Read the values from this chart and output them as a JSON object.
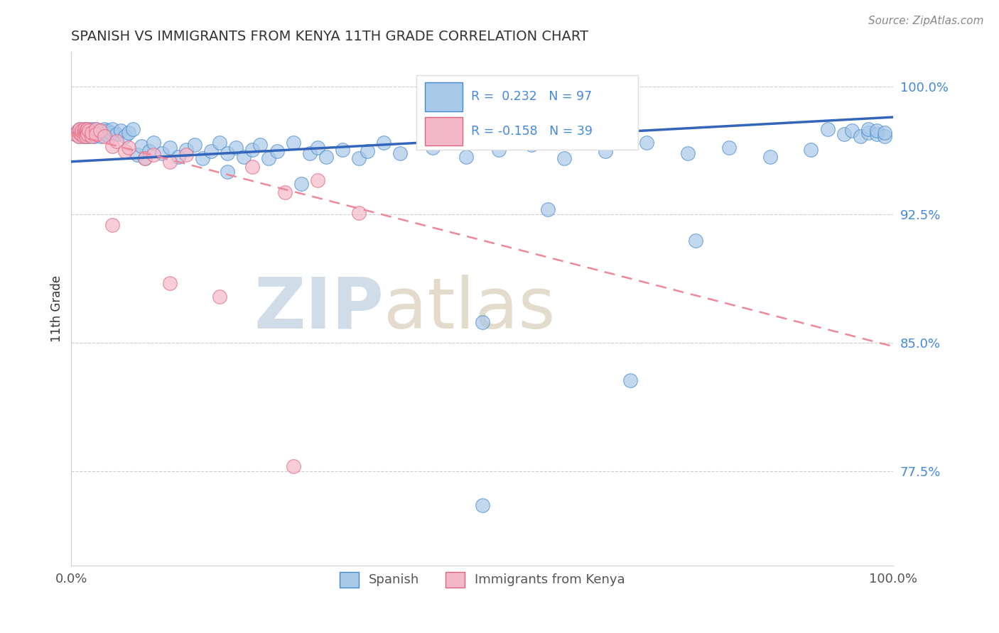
{
  "title": "SPANISH VS IMMIGRANTS FROM KENYA 11TH GRADE CORRELATION CHART",
  "source_text": "Source: ZipAtlas.com",
  "ylabel": "11th Grade",
  "legend_labels": [
    "Spanish",
    "Immigrants from Kenya"
  ],
  "r_spanish": 0.232,
  "n_spanish": 97,
  "r_kenya": -0.158,
  "n_kenya": 39,
  "blue_color": "#a8c8e8",
  "pink_color": "#f4b8c8",
  "blue_edge_color": "#4488cc",
  "pink_edge_color": "#e06080",
  "blue_line_color": "#3366bb",
  "pink_line_color": "#ee8899",
  "watermark_color": "#d0dde8",
  "xlim": [
    0.0,
    1.0
  ],
  "ylim": [
    0.72,
    1.02
  ],
  "yticks": [
    0.775,
    0.85,
    0.925,
    1.0
  ],
  "ytick_labels": [
    "77.5%",
    "85.0%",
    "92.5%",
    "100.0%"
  ],
  "blue_trend_start_y": 0.956,
  "blue_trend_end_y": 0.982,
  "pink_trend_start_y": 0.972,
  "pink_trend_end_y": 0.848,
  "blue_x": [
    0.005,
    0.008,
    0.009,
    0.01,
    0.01,
    0.012,
    0.013,
    0.015,
    0.015,
    0.016,
    0.017,
    0.018,
    0.018,
    0.019,
    0.02,
    0.02,
    0.021,
    0.022,
    0.023,
    0.025,
    0.025,
    0.026,
    0.028,
    0.03,
    0.03,
    0.032,
    0.035,
    0.036,
    0.038,
    0.04,
    0.042,
    0.044,
    0.046,
    0.048,
    0.05,
    0.055,
    0.06,
    0.065,
    0.07,
    0.075,
    0.08,
    0.085,
    0.09,
    0.095,
    0.1,
    0.11,
    0.12,
    0.13,
    0.14,
    0.15,
    0.16,
    0.17,
    0.18,
    0.19,
    0.2,
    0.21,
    0.22,
    0.23,
    0.24,
    0.25,
    0.27,
    0.29,
    0.3,
    0.31,
    0.33,
    0.35,
    0.36,
    0.38,
    0.4,
    0.44,
    0.48,
    0.52,
    0.56,
    0.6,
    0.65,
    0.7,
    0.75,
    0.8,
    0.85,
    0.9,
    0.92,
    0.94,
    0.95,
    0.96,
    0.97,
    0.97,
    0.98,
    0.98,
    0.99,
    0.99,
    0.19,
    0.28,
    0.5,
    0.58,
    0.68,
    0.76,
    0.5
  ],
  "blue_y": [
    0.972,
    0.974,
    0.971,
    0.973,
    0.975,
    0.972,
    0.974,
    0.971,
    0.973,
    0.975,
    0.972,
    0.974,
    0.971,
    0.973,
    0.975,
    0.972,
    0.974,
    0.971,
    0.973,
    0.975,
    0.972,
    0.974,
    0.971,
    0.973,
    0.975,
    0.972,
    0.974,
    0.971,
    0.973,
    0.975,
    0.972,
    0.974,
    0.971,
    0.973,
    0.975,
    0.972,
    0.974,
    0.971,
    0.973,
    0.975,
    0.96,
    0.965,
    0.958,
    0.962,
    0.967,
    0.961,
    0.964,
    0.959,
    0.963,
    0.966,
    0.958,
    0.962,
    0.967,
    0.961,
    0.964,
    0.959,
    0.963,
    0.966,
    0.958,
    0.962,
    0.967,
    0.961,
    0.964,
    0.959,
    0.963,
    0.958,
    0.962,
    0.967,
    0.961,
    0.964,
    0.959,
    0.963,
    0.966,
    0.958,
    0.962,
    0.967,
    0.961,
    0.964,
    0.959,
    0.963,
    0.975,
    0.972,
    0.974,
    0.971,
    0.973,
    0.975,
    0.972,
    0.974,
    0.971,
    0.973,
    0.95,
    0.943,
    0.862,
    0.928,
    0.828,
    0.91,
    0.755
  ],
  "pink_x": [
    0.005,
    0.008,
    0.009,
    0.01,
    0.01,
    0.012,
    0.013,
    0.015,
    0.015,
    0.016,
    0.017,
    0.018,
    0.018,
    0.019,
    0.02,
    0.02,
    0.021,
    0.025,
    0.025,
    0.03,
    0.03,
    0.035,
    0.04,
    0.05,
    0.055,
    0.065,
    0.07,
    0.09,
    0.1,
    0.12,
    0.05,
    0.14,
    0.22,
    0.26,
    0.3,
    0.35,
    0.18,
    0.12,
    0.27
  ],
  "pink_y": [
    0.972,
    0.974,
    0.971,
    0.973,
    0.975,
    0.972,
    0.974,
    0.971,
    0.973,
    0.975,
    0.972,
    0.974,
    0.971,
    0.973,
    0.975,
    0.972,
    0.974,
    0.971,
    0.973,
    0.975,
    0.972,
    0.974,
    0.971,
    0.965,
    0.968,
    0.962,
    0.964,
    0.958,
    0.96,
    0.956,
    0.919,
    0.96,
    0.953,
    0.938,
    0.945,
    0.926,
    0.877,
    0.885,
    0.778
  ]
}
